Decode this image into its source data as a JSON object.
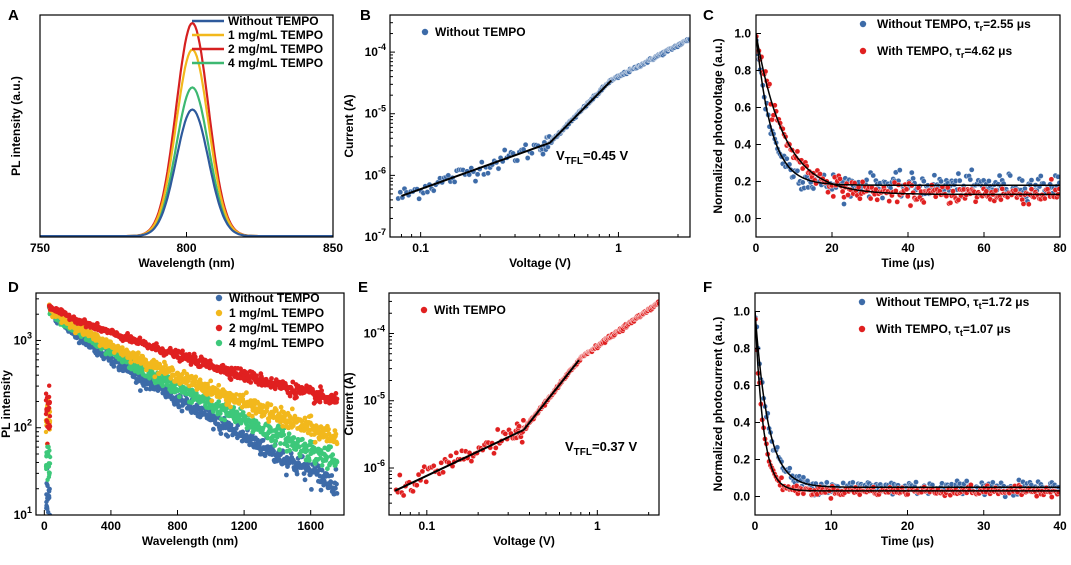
{
  "chart_data": [
    {
      "panel": "A",
      "type": "line",
      "xlabel": "Wavelength (nm)",
      "ylabel": "PL intensity (a.u.)",
      "xlim": [
        750,
        850
      ],
      "ylim": [
        0,
        1.0
      ],
      "xticks": [
        750,
        800,
        850
      ],
      "series": [
        {
          "name": "Without TEMPO",
          "color": "#2e5a9c",
          "peak_x": 802,
          "height": 0.57,
          "width": 5.5
        },
        {
          "name": "1 mg/mL TEMPO",
          "color": "#f2b81c",
          "peak_x": 802,
          "height": 0.84,
          "width": 5.5
        },
        {
          "name": "2 mg/mL TEMPO",
          "color": "#d62020",
          "peak_x": 802,
          "height": 0.96,
          "width": 5.5
        },
        {
          "name": "4 mg/mL TEMPO",
          "color": "#3db871",
          "peak_x": 802,
          "height": 0.67,
          "width": 5.5
        }
      ]
    },
    {
      "panel": "B",
      "type": "scatter",
      "xlabel": "Voltage (V)",
      "ylabel": "Current (A)",
      "xscale": "log",
      "yscale": "log",
      "xlim": [
        0.07,
        2.3
      ],
      "ylim": [
        1e-07,
        0.0004
      ],
      "xticks": [
        {
          "v": 0.1,
          "l": "0.1"
        },
        {
          "v": 1,
          "l": "1"
        }
      ],
      "yticks": [
        {
          "v": 1e-07,
          "b": "10",
          "e": "-7"
        },
        {
          "v": 1e-06,
          "b": "10",
          "e": "-6"
        },
        {
          "v": 1e-05,
          "b": "10",
          "e": "-5"
        },
        {
          "v": 0.0001,
          "b": "10",
          "e": "-4"
        }
      ],
      "series": [
        {
          "name": "Without TEMPO",
          "color": "#3d6ba8"
        }
      ],
      "vtfl": {
        "prefix": "V",
        "sub": "TFL",
        "suffix": "=0.45 V",
        "value": 0.45
      },
      "curve": {
        "v0": 0.09,
        "i0": 5.3e-07,
        "slope1": 1.15,
        "v1": 0.45,
        "slope2": 3.3,
        "v2": 0.9,
        "slope3": 1.7
      },
      "fit_segments": [
        [
          0.08,
          0.45
        ],
        [
          0.45,
          0.92
        ]
      ]
    },
    {
      "panel": "C",
      "type": "scatter",
      "xlabel": "Time (μs)",
      "ylabel": "Normalized photovoltage (a.u.)",
      "xlim": [
        0,
        80
      ],
      "ylim": [
        -0.1,
        1.1
      ],
      "xticks": [
        0,
        20,
        40,
        60,
        80
      ],
      "yticks": [
        0.0,
        0.2,
        0.4,
        0.6,
        0.8,
        1.0
      ],
      "series": [
        {
          "name": "Without TEMPO",
          "sym": "τ",
          "sub": "r",
          "val": "=2.55 μs",
          "color": "#3d6ba8",
          "tau": 2.55,
          "baseline": 0.18,
          "noise": 0.03
        },
        {
          "name": "With TEMPO",
          "sym": "τ",
          "sub": "r",
          "val": "=4.62 μs",
          "color": "#e02020",
          "tau": 4.62,
          "baseline": 0.13,
          "noise": 0.025
        }
      ]
    },
    {
      "panel": "D",
      "type": "scatter",
      "xlabel": "Wavelength (nm)",
      "ylabel": "PL intensity",
      "yscale": "log",
      "xlim": [
        -50,
        1800
      ],
      "ylim": [
        10,
        3500
      ],
      "xticks": [
        0,
        400,
        800,
        1200,
        1600
      ],
      "yticks": [
        {
          "v": 10,
          "b": "10",
          "e": "1"
        },
        {
          "v": 100,
          "b": "10",
          "e": "2"
        },
        {
          "v": 1000,
          "b": "10",
          "e": "3"
        }
      ],
      "series": [
        {
          "name": "Without TEMPO",
          "color": "#3d6ba8",
          "start": 2300,
          "end": 22,
          "noise": 0.12
        },
        {
          "name": "1 mg/mL TEMPO",
          "color": "#f2b81c",
          "start": 2300,
          "end": 75,
          "noise": 0.1
        },
        {
          "name": "2 mg/mL TEMPO",
          "color": "#e02020",
          "start": 2500,
          "end": 200,
          "noise": 0.07
        },
        {
          "name": "4 mg/mL TEMPO",
          "color": "#3dc87a",
          "start": 2300,
          "end": 40,
          "noise": 0.11
        }
      ]
    },
    {
      "panel": "E",
      "type": "scatter",
      "xlabel": "Voltage (V)",
      "ylabel": "Current (A)",
      "xscale": "log",
      "yscale": "log",
      "xlim": [
        0.06,
        2.3
      ],
      "ylim": [
        2e-07,
        0.0004
      ],
      "xticks": [
        {
          "v": 0.1,
          "l": "0.1"
        },
        {
          "v": 1,
          "l": "1"
        }
      ],
      "yticks": [
        {
          "v": 1e-06,
          "b": "10",
          "e": "-6"
        },
        {
          "v": 1e-05,
          "b": "10",
          "e": "-5"
        },
        {
          "v": 0.0001,
          "b": "10",
          "e": "-4"
        }
      ],
      "series": [
        {
          "name": "With TEMPO",
          "color": "#e02020"
        }
      ],
      "vtfl": {
        "prefix": "V",
        "sub": "TFL",
        "suffix": "=0.37 V",
        "value": 0.37
      },
      "curve": {
        "v0": 0.07,
        "i0": 5e-07,
        "slope1": 1.2,
        "v1": 0.37,
        "slope2": 3.2,
        "v2": 0.8,
        "slope3": 1.8
      },
      "fit_segments": [
        [
          0.065,
          0.37
        ],
        [
          0.37,
          0.78
        ]
      ]
    },
    {
      "panel": "F",
      "type": "scatter",
      "xlabel": "Time (μs)",
      "ylabel": "Normalized photocurrent (a.u.)",
      "xlim": [
        0,
        40
      ],
      "ylim": [
        -0.1,
        1.1
      ],
      "xticks": [
        0,
        10,
        20,
        30,
        40
      ],
      "yticks": [
        0.0,
        0.2,
        0.4,
        0.6,
        0.8,
        1.0
      ],
      "series": [
        {
          "name": "Without TEMPO",
          "sym": "τ",
          "sub": "t",
          "val": "=1.72 μs",
          "color": "#3d6ba8",
          "tau": 1.72,
          "baseline": 0.05,
          "noise": 0.02
        },
        {
          "name": "With TEMPO",
          "sym": "τ",
          "sub": "t",
          "val": "=1.07 μs",
          "color": "#e02020",
          "tau": 1.07,
          "baseline": 0.03,
          "noise": 0.012
        }
      ]
    }
  ]
}
